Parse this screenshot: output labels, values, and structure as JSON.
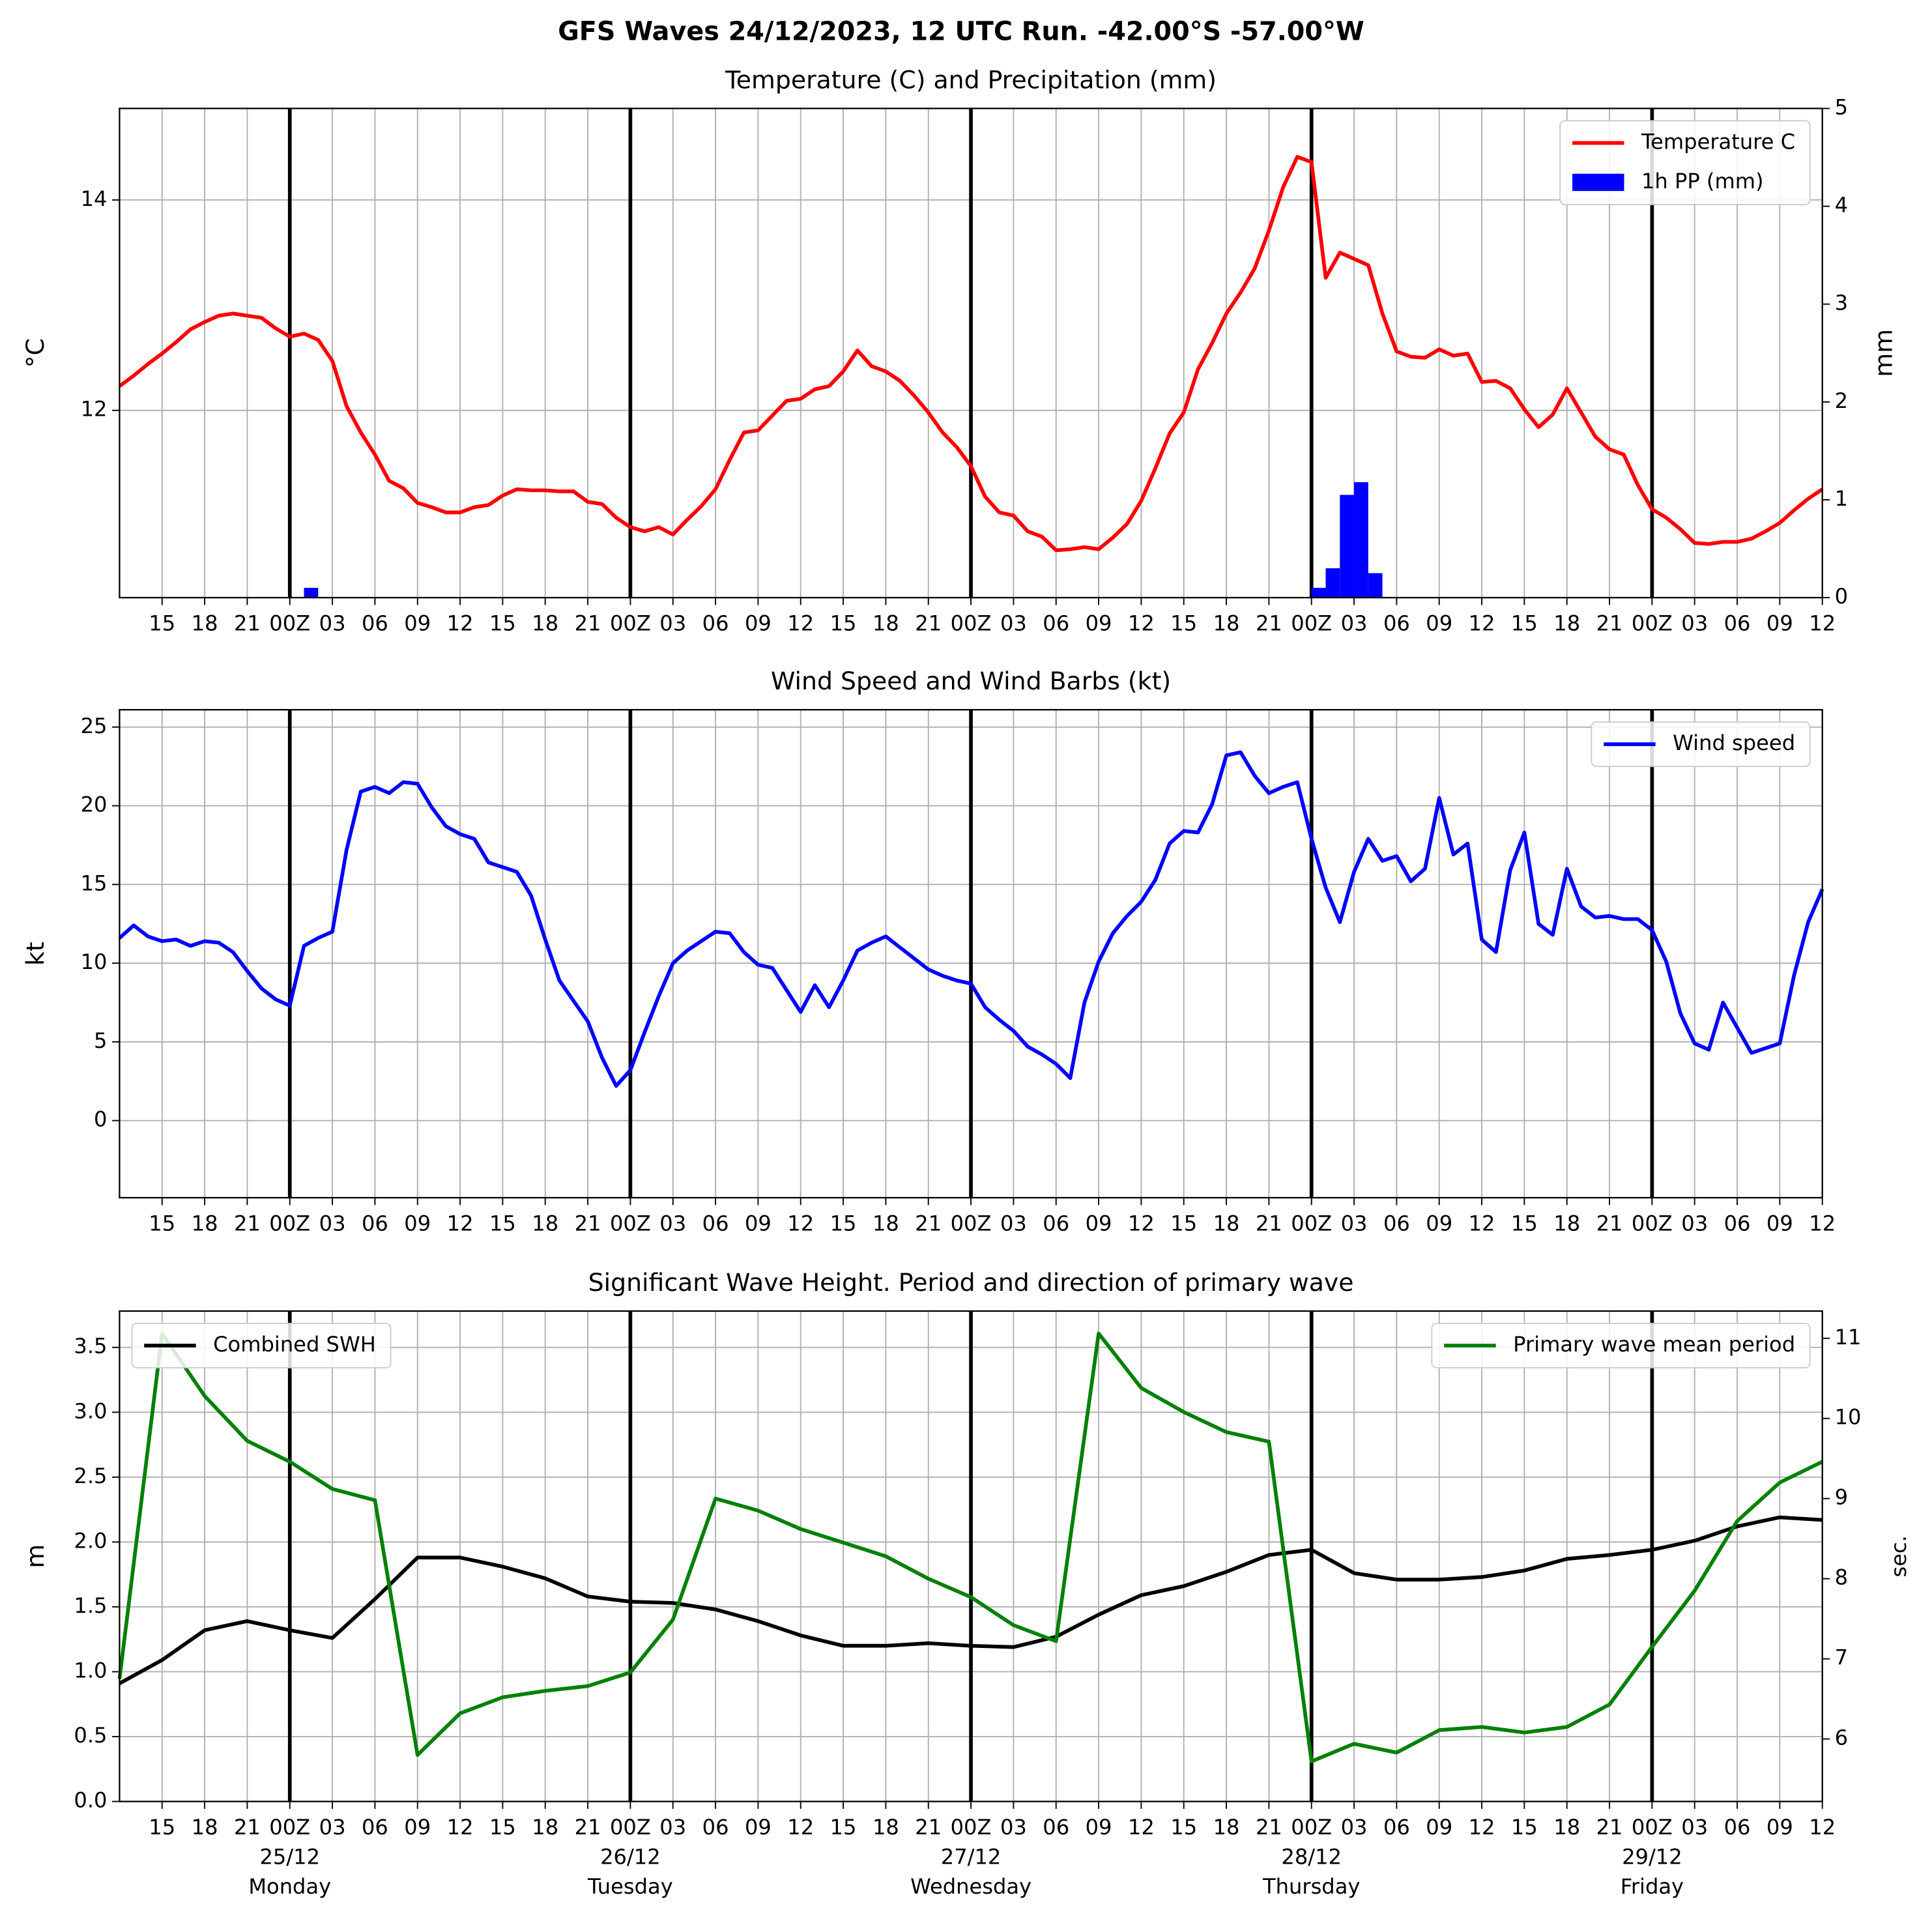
{
  "title": "GFS Waves 24/12/2023, 12 UTC Run. -42.00°S -57.00°W",
  "chart_data": [
    {
      "type": "line",
      "title": "Temperature (C) and Precipitation (mm)",
      "ylabel": "°C",
      "y2label": "mm",
      "categories": [
        null,
        null,
        null,
        "15",
        null,
        null,
        "18",
        null,
        null,
        "21",
        null,
        null,
        "00Z",
        null,
        null,
        "03",
        null,
        null,
        "06",
        null,
        null,
        "09",
        null,
        null,
        "12",
        null,
        null,
        "15",
        null,
        null,
        "18",
        null,
        null,
        "21",
        null,
        null,
        "00Z",
        null,
        null,
        "03",
        null,
        null,
        "06",
        null,
        null,
        "09",
        null,
        null,
        "12",
        null,
        null,
        "15",
        null,
        null,
        "18",
        null,
        null,
        "21",
        null,
        null,
        "00Z",
        null,
        null,
        "03",
        null,
        null,
        "06",
        null,
        null,
        "09",
        null,
        null,
        "12",
        null,
        null,
        "15",
        null,
        null,
        "18",
        null,
        null,
        "21",
        null,
        null,
        "00Z",
        null,
        null,
        "03",
        null,
        null,
        "06",
        null,
        null,
        "09",
        null,
        null,
        "12",
        null,
        null,
        "15",
        null,
        null,
        "18",
        null,
        null,
        "21",
        null,
        null,
        "00Z",
        null,
        null,
        "03",
        null,
        null,
        "06",
        null,
        null,
        "09",
        null,
        null,
        "12"
      ],
      "series": [
        {
          "name": "Temperature C",
          "color": "#ff0000",
          "type": "line",
          "values": [
            12.23,
            12.33,
            12.44,
            12.54,
            12.65,
            12.77,
            12.84,
            12.9,
            12.92,
            12.9,
            12.88,
            12.78,
            12.7,
            12.73,
            12.67,
            12.47,
            12.04,
            11.79,
            11.58,
            11.33,
            11.26,
            11.12,
            11.08,
            11.03,
            11.03,
            11.08,
            11.1,
            11.19,
            11.25,
            11.24,
            11.24,
            11.23,
            11.23,
            11.13,
            11.11,
            10.98,
            10.89,
            10.85,
            10.89,
            10.82,
            10.96,
            11.09,
            11.25,
            11.53,
            11.79,
            11.81,
            11.95,
            12.09,
            12.11,
            12.2,
            12.23,
            12.37,
            12.57,
            12.42,
            12.37,
            12.28,
            12.14,
            11.98,
            11.79,
            11.65,
            11.47,
            11.18,
            11.03,
            11.0,
            10.85,
            10.8,
            10.67,
            10.68,
            10.7,
            10.68,
            10.79,
            10.92,
            11.14,
            11.45,
            11.78,
            11.98,
            12.39,
            12.64,
            12.92,
            13.12,
            13.35,
            13.71,
            14.12,
            14.41,
            14.36,
            13.26,
            13.5,
            13.44,
            13.38,
            12.92,
            12.56,
            12.51,
            12.5,
            12.58,
            12.52,
            12.54,
            12.27,
            12.28,
            12.21,
            12.01,
            11.84,
            11.96,
            12.21,
            11.98,
            11.75,
            11.63,
            11.58,
            11.29,
            11.06,
            10.98,
            10.87,
            10.74,
            10.73,
            10.75,
            10.75,
            10.78,
            10.85,
            10.93,
            11.05,
            11.16,
            11.25
          ]
        },
        {
          "name": "1h PP (mm)",
          "color": "#0000ff",
          "type": "bar",
          "axis": "y2",
          "values": [
            0,
            0,
            0,
            0,
            0,
            0,
            0,
            0,
            0,
            0,
            0,
            0,
            0,
            0.1,
            0,
            0,
            0,
            0,
            0,
            0,
            0,
            0,
            0,
            0,
            0,
            0,
            0,
            0,
            0,
            0,
            0,
            0,
            0,
            0,
            0,
            0,
            0,
            0,
            0,
            0,
            0,
            0,
            0,
            0,
            0,
            0,
            0,
            0,
            0,
            0,
            0,
            0,
            0,
            0,
            0,
            0,
            0,
            0,
            0,
            0,
            0,
            0,
            0,
            0,
            0,
            0,
            0,
            0,
            0,
            0,
            0,
            0,
            0,
            0,
            0,
            0,
            0,
            0,
            0,
            0,
            0,
            0,
            0,
            0,
            0.1,
            0.3,
            1.05,
            1.18,
            0.25,
            0,
            0,
            0,
            0,
            0,
            0,
            0,
            0,
            0,
            0,
            0,
            0,
            0,
            0,
            0,
            0,
            0,
            0,
            0,
            0,
            0,
            0,
            0,
            0,
            0,
            0,
            0,
            0,
            0,
            0,
            0,
            0
          ]
        }
      ],
      "ylim": [
        10.22,
        14.87
      ],
      "yticks": [
        12,
        14
      ],
      "y2lim": [
        0,
        5
      ],
      "y2ticks": [
        0,
        1,
        2,
        3,
        4,
        5
      ],
      "grid": true,
      "legend": "upper right"
    },
    {
      "type": "line",
      "title": "Wind Speed and Wind Barbs (kt)",
      "ylabel": "kt",
      "categories": [
        null,
        null,
        null,
        "15",
        null,
        null,
        "18",
        null,
        null,
        "21",
        null,
        null,
        "00Z",
        null,
        null,
        "03",
        null,
        null,
        "06",
        null,
        null,
        "09",
        null,
        null,
        "12",
        null,
        null,
        "15",
        null,
        null,
        "18",
        null,
        null,
        "21",
        null,
        null,
        "00Z",
        null,
        null,
        "03",
        null,
        null,
        "06",
        null,
        null,
        "09",
        null,
        null,
        "12",
        null,
        null,
        "15",
        null,
        null,
        "18",
        null,
        null,
        "21",
        null,
        null,
        "00Z",
        null,
        null,
        "03",
        null,
        null,
        "06",
        null,
        null,
        "09",
        null,
        null,
        "12",
        null,
        null,
        "15",
        null,
        null,
        "18",
        null,
        null,
        "21",
        null,
        null,
        "00Z",
        null,
        null,
        "03",
        null,
        null,
        "06",
        null,
        null,
        "09",
        null,
        null,
        "12",
        null,
        null,
        "15",
        null,
        null,
        "18",
        null,
        null,
        "21",
        null,
        null,
        "00Z",
        null,
        null,
        "03",
        null,
        null,
        "06",
        null,
        null,
        "09",
        null,
        null,
        "12"
      ],
      "series": [
        {
          "name": "Wind speed",
          "color": "#0000ff",
          "type": "line",
          "values": [
            11.6,
            12.4,
            11.7,
            11.4,
            11.5,
            11.1,
            11.4,
            11.3,
            10.7,
            9.5,
            8.4,
            7.7,
            7.3,
            11.1,
            11.6,
            12.0,
            17.2,
            20.9,
            21.2,
            20.8,
            21.5,
            21.4,
            19.9,
            18.7,
            18.2,
            17.9,
            16.4,
            16.1,
            15.8,
            14.3,
            11.5,
            8.9,
            7.6,
            6.3,
            4.0,
            2.2,
            3.2,
            5.6,
            7.9,
            10.0,
            10.8,
            11.4,
            12.0,
            11.9,
            10.7,
            9.9,
            9.7,
            8.3,
            6.9,
            8.6,
            7.2,
            8.9,
            10.8,
            11.3,
            11.7,
            11.0,
            10.3,
            9.6,
            9.2,
            8.9,
            8.7,
            7.2,
            6.4,
            5.7,
            4.7,
            4.2,
            3.6,
            2.7,
            7.5,
            10.1,
            11.9,
            13.0,
            13.9,
            15.3,
            17.6,
            18.4,
            18.3,
            20.1,
            23.2,
            23.4,
            21.9,
            20.8,
            21.2,
            21.5,
            17.9,
            14.8,
            12.6,
            15.8,
            17.9,
            16.5,
            16.8,
            15.2,
            16.0,
            20.5,
            16.9,
            17.6,
            11.5,
            10.7,
            15.9,
            18.3,
            12.5,
            11.8,
            16.0,
            13.6,
            12.9,
            13.0,
            12.8,
            12.8,
            12.1,
            10.1,
            6.8,
            4.9,
            4.5,
            7.5,
            5.9,
            4.3,
            4.6,
            4.9,
            9.2,
            12.6,
            14.7
          ]
        }
      ],
      "ylim": [
        -4.9,
        26.1
      ],
      "yticks": [
        0,
        5,
        10,
        15,
        20,
        25
      ],
      "grid": true,
      "legend": "upper right"
    },
    {
      "type": "line",
      "title": "Significant Wave Height. Period and direction of primary wave",
      "ylabel": "m",
      "y2label": "sec.",
      "y2label_color": "#008000",
      "categories": [
        null,
        "15",
        "18",
        "21",
        "00Z",
        "03",
        "06",
        "09",
        "12",
        "15",
        "18",
        "21",
        "00Z",
        "03",
        "06",
        "09",
        "12",
        "15",
        "18",
        "21",
        "00Z",
        "03",
        "06",
        "09",
        "12",
        "15",
        "18",
        "21",
        "00Z",
        "03",
        "06",
        "09",
        "12",
        "15",
        "18",
        "21",
        "00Z",
        "03",
        "06",
        "09",
        "12"
      ],
      "dates": [
        null,
        null,
        null,
        null,
        "25/12",
        null,
        null,
        null,
        null,
        null,
        null,
        null,
        "26/12",
        null,
        null,
        null,
        null,
        null,
        null,
        null,
        "27/12",
        null,
        null,
        null,
        null,
        null,
        null,
        null,
        "28/12",
        null,
        null,
        null,
        null,
        null,
        null,
        null,
        "29/12",
        null,
        null,
        null,
        null
      ],
      "weekdays": [
        null,
        null,
        null,
        null,
        "Monday",
        null,
        null,
        null,
        null,
        null,
        null,
        null,
        "Tuesday",
        null,
        null,
        null,
        null,
        null,
        null,
        null,
        "Wednesday",
        null,
        null,
        null,
        null,
        null,
        null,
        null,
        "Thursday",
        null,
        null,
        null,
        null,
        null,
        null,
        null,
        "Friday",
        null,
        null,
        null,
        null
      ],
      "series": [
        {
          "name": "Combined SWH",
          "color": "#000000",
          "type": "line",
          "legend": "upper left",
          "values": [
            0.91,
            1.09,
            1.32,
            1.39,
            1.32,
            1.26,
            1.56,
            1.88,
            1.88,
            1.81,
            1.72,
            1.58,
            1.54,
            1.53,
            1.48,
            1.39,
            1.28,
            1.2,
            1.2,
            1.22,
            1.2,
            1.19,
            1.27,
            1.44,
            1.59,
            1.66,
            1.77,
            1.9,
            1.94,
            1.76,
            1.71,
            1.71,
            1.73,
            1.78,
            1.87,
            1.9,
            1.94,
            2.01,
            2.12,
            2.19,
            2.17
          ]
        },
        {
          "name": "Primary wave mean period",
          "color": "#008000",
          "type": "line",
          "axis": "y2",
          "legend": "upper right",
          "values": [
            6.75,
            11.06,
            10.28,
            9.72,
            9.46,
            9.12,
            8.98,
            5.8,
            6.32,
            6.52,
            6.6,
            6.66,
            6.83,
            7.49,
            9.0,
            8.85,
            8.62,
            8.45,
            8.28,
            8.0,
            7.77,
            7.42,
            7.22,
            11.06,
            10.38,
            10.08,
            9.83,
            9.71,
            5.72,
            5.94,
            5.83,
            6.11,
            6.15,
            6.08,
            6.15,
            6.43,
            7.15,
            7.85,
            8.72,
            9.2,
            9.46
          ]
        }
      ],
      "ylim": [
        0,
        3.78
      ],
      "yticks": [
        {
          "value": 0,
          "label": "0.0"
        },
        0.5,
        {
          "value": 1,
          "label": "1.0"
        },
        1.5,
        {
          "value": 2,
          "label": "2.0"
        },
        2.5,
        {
          "value": 3,
          "label": "3.0"
        },
        3.5
      ],
      "y2lim": [
        5.22,
        11.34
      ],
      "y2ticks": [
        6,
        7,
        8,
        9,
        10,
        11
      ],
      "grid": true
    }
  ]
}
